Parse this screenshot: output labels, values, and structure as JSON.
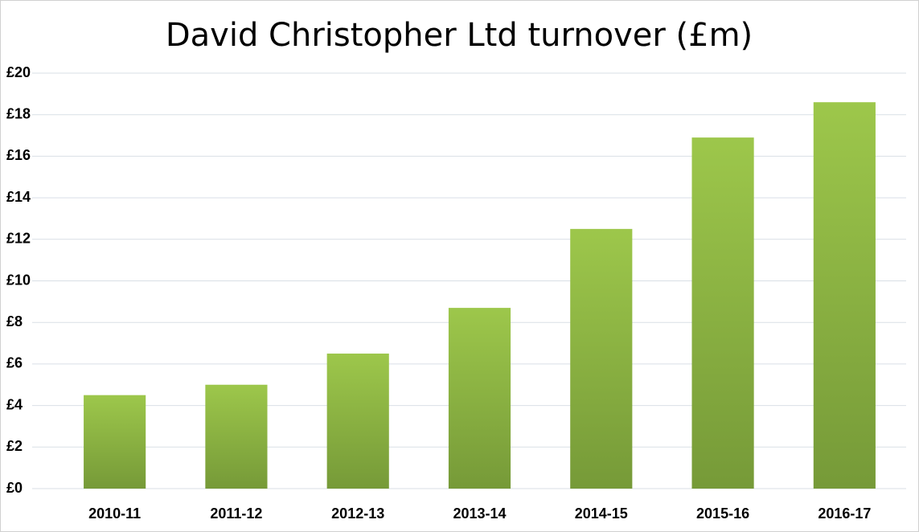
{
  "chart_data": {
    "type": "bar",
    "title": "David Christopher Ltd turnover (£m)",
    "categories": [
      "2010-11",
      "2011-12",
      "2012-13",
      "2013-14",
      "2014-15",
      "2015-16",
      "2016-17"
    ],
    "values": [
      4.5,
      5.0,
      6.5,
      8.7,
      12.5,
      16.9,
      18.6
    ],
    "color": "#9dc74b",
    "ylim": [
      0,
      20
    ],
    "yticks": [
      {
        "value": 0,
        "label": "£0"
      },
      {
        "value": 2,
        "label": "£2"
      },
      {
        "value": 4,
        "label": "£4"
      },
      {
        "value": 6,
        "label": "£6"
      },
      {
        "value": 8,
        "label": "£8"
      },
      {
        "value": 10,
        "label": "£10"
      },
      {
        "value": 12,
        "label": "£12"
      },
      {
        "value": 14,
        "label": "£14"
      },
      {
        "value": 16,
        "label": "£16"
      },
      {
        "value": 18,
        "label": "£18"
      },
      {
        "value": 20,
        "label": "£20"
      }
    ],
    "grid": true
  }
}
